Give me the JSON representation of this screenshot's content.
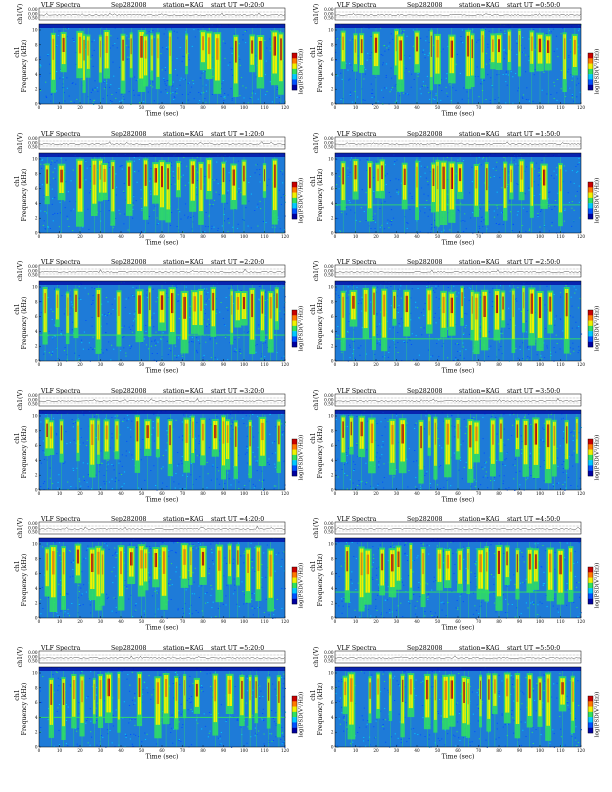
{
  "figure": {
    "title_prefix": "VLF Spectra",
    "date": "Sep282008",
    "station": "station=KAG",
    "start_label": "start",
    "ut_label": "UT"
  },
  "axes": {
    "top_ylabel": "ch1(V)",
    "top_ticks": [
      "0.00",
      "0.00",
      "0.50"
    ],
    "freq_ylabel_top": "ch1",
    "freq_ylabel": "Frequency (kHz)",
    "freq_ticks": [
      "0",
      "2",
      "4",
      "6",
      "8",
      "10"
    ],
    "time_xlabel": "Time (sec)",
    "time_ticks": [
      "0",
      "10",
      "20",
      "30",
      "40",
      "50",
      "60",
      "70",
      "80",
      "90",
      "100",
      "110",
      "120"
    ],
    "colorbar_label": "log(PSD(V²/Hz))"
  },
  "colors": {
    "background": "#1e7bd8",
    "colormap": [
      "#0000a0",
      "#0050ff",
      "#00c8ff",
      "#30e060",
      "#f0f000",
      "#ff7800",
      "#c80000"
    ]
  },
  "chart_data": [
    {
      "type": "heatmap",
      "start_ut": "=0:20:0",
      "xlabel": "Time (sec)",
      "ylabel": "Frequency (kHz)",
      "xlim": [
        0,
        120
      ],
      "ylim": [
        0,
        10
      ],
      "bursts": [
        7,
        12,
        20,
        22,
        24,
        30,
        33,
        41,
        45,
        50,
        52,
        55,
        58,
        64,
        72,
        80,
        83,
        87,
        96,
        104,
        108,
        115,
        118
      ],
      "noise_band_khz": null
    },
    {
      "type": "heatmap",
      "start_ut": "=0:50:0",
      "xlabel": "Time (sec)",
      "ylabel": "Frequency (kHz)",
      "xlim": [
        0,
        120
      ],
      "ylim": [
        0,
        10
      ],
      "bursts": [
        4,
        10,
        13,
        20,
        30,
        32,
        40,
        47,
        50,
        57,
        65,
        67,
        72,
        77,
        80,
        85,
        90,
        96,
        100,
        104,
        112,
        117
      ],
      "noise_band_khz": null
    },
    {
      "type": "heatmap",
      "start_ut": "=1:20:0",
      "xlabel": "Time (sec)",
      "ylabel": "Frequency (kHz)",
      "xlim": [
        0,
        120
      ],
      "ylim": [
        0,
        10
      ],
      "bursts": [
        4,
        11,
        20,
        27,
        30,
        32,
        36,
        44,
        52,
        57,
        60,
        63,
        68,
        75,
        79,
        83,
        90,
        95,
        100,
        110,
        115
      ],
      "noise_band_khz": null
    },
    {
      "type": "heatmap",
      "start_ut": "=1:50:0",
      "xlabel": "Time (sec)",
      "ylabel": "Frequency (kHz)",
      "xlim": [
        0,
        120
      ],
      "ylim": [
        0,
        10
      ],
      "bursts": [
        4,
        10,
        17,
        21,
        23,
        34,
        40,
        48,
        50,
        53,
        57,
        61,
        69,
        74,
        83,
        86,
        91,
        96,
        102,
        110
      ],
      "noise_band_khz": 3.8
    },
    {
      "type": "heatmap",
      "start_ut": "=2:20:0",
      "xlabel": "Time (sec)",
      "ylabel": "Frequency (kHz)",
      "xlim": [
        0,
        120
      ],
      "ylim": [
        0,
        10
      ],
      "bursts": [
        3,
        9,
        14,
        18,
        29,
        39,
        49,
        54,
        60,
        65,
        71,
        76,
        79,
        85,
        94,
        97,
        100,
        104,
        109,
        113,
        116
      ],
      "noise_band_khz": 3.5
    },
    {
      "type": "heatmap",
      "start_ut": "=2:50:0",
      "xlabel": "Time (sec)",
      "ylabel": "Frequency (kHz)",
      "xlim": [
        0,
        120
      ],
      "ylim": [
        0,
        10
      ],
      "bursts": [
        4,
        9,
        15,
        19,
        24,
        29,
        35,
        46,
        53,
        57,
        62,
        67,
        69,
        73,
        79,
        82,
        87,
        92,
        96,
        100,
        105,
        113
      ],
      "noise_band_khz": 3.0
    },
    {
      "type": "heatmap",
      "start_ut": "=3:20:0",
      "xlabel": "Time (sec)",
      "ylabel": "Frequency (kHz)",
      "xlim": [
        0,
        120
      ],
      "ylim": [
        0,
        10
      ],
      "bursts": [
        4,
        6,
        11,
        19,
        26,
        29,
        33,
        38,
        48,
        53,
        58,
        64,
        72,
        75,
        80,
        86,
        90,
        92,
        96,
        103,
        109,
        117
      ],
      "noise_band_khz": null
    },
    {
      "type": "heatmap",
      "start_ut": "=3:50:0",
      "xlabel": "Time (sec)",
      "ylabel": "Frequency (kHz)",
      "xlim": [
        0,
        120
      ],
      "ylim": [
        0,
        10
      ],
      "bursts": [
        4,
        8,
        13,
        18,
        28,
        33,
        42,
        46,
        49,
        55,
        60,
        66,
        69,
        77,
        81,
        89,
        93,
        98,
        104,
        107,
        113,
        118
      ],
      "noise_band_khz": null
    },
    {
      "type": "heatmap",
      "start_ut": "=4:20:0",
      "xlabel": "Time (sec)",
      "ylabel": "Frequency (kHz)",
      "xlim": [
        0,
        120
      ],
      "ylim": [
        0,
        10
      ],
      "bursts": [
        4,
        7,
        12,
        19,
        26,
        29,
        31,
        40,
        45,
        50,
        52,
        57,
        61,
        71,
        74,
        80,
        88,
        93,
        97,
        102,
        107,
        113
      ],
      "noise_band_khz": null
    },
    {
      "type": "heatmap",
      "start_ut": "=4:50:0",
      "xlabel": "Time (sec)",
      "ylabel": "Frequency (kHz)",
      "xlim": [
        0,
        120
      ],
      "ylim": [
        0,
        10
      ],
      "bursts": [
        6,
        13,
        16,
        23,
        28,
        31,
        37,
        43,
        51,
        55,
        61,
        65,
        71,
        74,
        80,
        84,
        89,
        95,
        98,
        105,
        110,
        115
      ],
      "noise_band_khz": 3.5
    },
    {
      "type": "heatmap",
      "start_ut": "=5:20:0",
      "xlabel": "Time (sec)",
      "ylabel": "Frequency (kHz)",
      "xlim": [
        0,
        120
      ],
      "ylim": [
        0,
        10
      ],
      "bursts": [
        6,
        12,
        17,
        21,
        27,
        30,
        34,
        39,
        49,
        58,
        62,
        67,
        71,
        77,
        86,
        93,
        99,
        103,
        106,
        112,
        117
      ],
      "noise_band_khz": 4.0
    },
    {
      "type": "heatmap",
      "start_ut": "=5:50:0",
      "xlabel": "Time (sec)",
      "ylabel": "Frequency (kHz)",
      "xlim": [
        0,
        120
      ],
      "ylim": [
        0,
        10
      ],
      "bursts": [
        5,
        8,
        17,
        21,
        27,
        33,
        37,
        45,
        49,
        54,
        57,
        63,
        65,
        71,
        75,
        78,
        84,
        89,
        95,
        100,
        104,
        111,
        116
      ],
      "noise_band_khz": null
    }
  ]
}
